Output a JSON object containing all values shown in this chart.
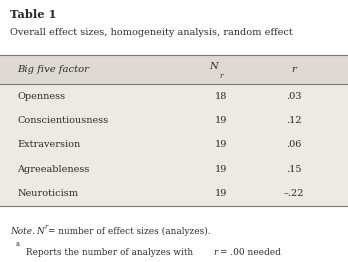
{
  "table_title": "Table 1",
  "table_subtitle": "Overall effect sizes, homogeneity analysis, random effect",
  "col_headers": [
    "Big five factor",
    "Nr",
    "r"
  ],
  "rows": [
    [
      "Openness",
      "18",
      ".03"
    ],
    [
      "Conscientiousness",
      "19",
      ".12"
    ],
    [
      "Extraversion",
      "19",
      ".06"
    ],
    [
      "Agreeableness",
      "19",
      ".15"
    ],
    [
      "Neuroticism",
      "19",
      "–.22"
    ]
  ],
  "note_line1": "Note. Nr = number of effect sizes (analyzes).",
  "note_line2": "Reports the number of analyzes with r = .00 needed",
  "background_color": "#ede9e3",
  "header_bg": "#dedad3",
  "fig_bg": "#ffffff",
  "text_color": "#2b2b2b",
  "line_color": "#777777"
}
